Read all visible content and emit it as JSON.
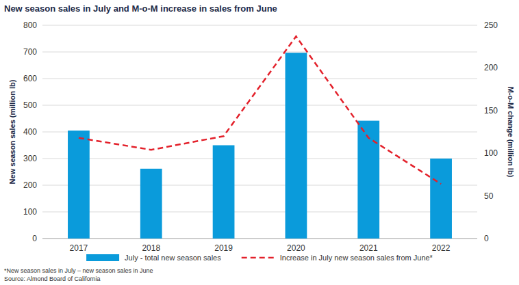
{
  "chart_data": {
    "type": "bar",
    "title": "New season sales in July and M-o-M increase in sales from June",
    "categories": [
      "2017",
      "2018",
      "2019",
      "2020",
      "2021",
      "2022"
    ],
    "series": [
      {
        "name": "July - total new season sales",
        "type": "bar",
        "color": "#0a9bdb",
        "values": [
          405,
          262,
          350,
          697,
          442,
          300
        ]
      },
      {
        "name": "Increase in July new season sales from June*",
        "type": "line",
        "axis": "y2",
        "color": "#e3212b",
        "line_style": "dashed",
        "values": [
          118,
          104,
          120,
          237,
          118,
          64
        ]
      }
    ],
    "y_label": "New season sales (million lb)",
    "y2_label": "M-o-M change (million lb)",
    "ylim": [
      0,
      800
    ],
    "yticks": [
      0,
      100,
      200,
      300,
      400,
      500,
      600,
      700,
      800
    ],
    "y2lim": [
      0,
      250
    ],
    "y2ticks": [
      0,
      50,
      100,
      150,
      200,
      250
    ],
    "grid": true,
    "legend": "bottom",
    "footnote": "*New season sales in July – new season sales in June",
    "source": "Source: Almond Board of California"
  }
}
